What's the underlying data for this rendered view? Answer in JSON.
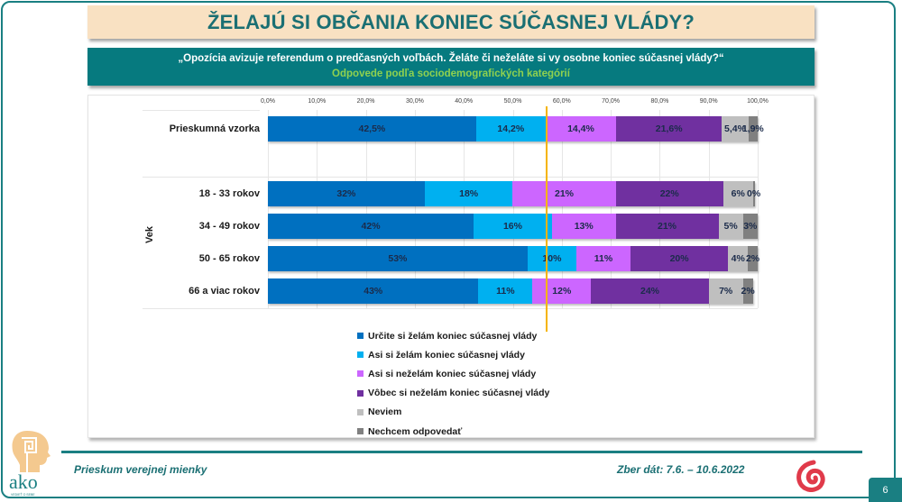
{
  "header": {
    "title": "ŽELAJÚ SI OBČANIA KONIEC SÚČASNEJ VLÁDY?",
    "question": "„Opozícia avizuje referendum o predčasných voľbách. Želáte či neželáte si vy osobne koniec súčasnej vlády?“",
    "subtitle": "Odpovede podľa sociodemografických kategórií"
  },
  "footer": {
    "left_text": "Prieskum verejnej mienky",
    "right_text": "Zber dát: 7.6. – 10.6.2022",
    "page_number": "6",
    "logo_text": "ako",
    "logo_tagline": "VEDIEŤ O SEBE",
    "icons": [
      "ako-logo-icon",
      "spiral-logo-icon"
    ]
  },
  "axis": {
    "ticks": [
      "0,0%",
      "10,0%",
      "20,0%",
      "30,0%",
      "40,0%",
      "50,0%",
      "60,0%",
      "70,0%",
      "80,0%",
      "90,0%",
      "100,0%"
    ],
    "group_label": "Vek"
  },
  "legend": [
    {
      "label": "Určite si želám koniec súčasnej vlády",
      "color": "#0070c0"
    },
    {
      "label": "Asi si želám koniec súčasnej vlády",
      "color": "#00b0f0"
    },
    {
      "label": "Asi si neželám koniec súčasnej vlády",
      "color": "#cc66ff"
    },
    {
      "label": "Vôbec si neželám koniec súčasnej vlády",
      "color": "#7030a0"
    },
    {
      "label": "Neviem",
      "color": "#bfbfbf"
    },
    {
      "label": "Nechcem odpovedať",
      "color": "#808080"
    }
  ],
  "rows": [
    {
      "label": "Prieskumná vzorka",
      "values": [
        42.5,
        14.2,
        14.4,
        21.6,
        5.4,
        1.9
      ],
      "labels": [
        "42,5%",
        "14,2%",
        "14,4%",
        "21,6%",
        "5,4%",
        "1,9%"
      ]
    },
    {
      "label": "18 - 33 rokov",
      "values": [
        32,
        18,
        21,
        22,
        6,
        0.4
      ],
      "labels": [
        "32%",
        "18%",
        "21%",
        "22%",
        "6%",
        "0%"
      ]
    },
    {
      "label": "34 - 49 rokov",
      "values": [
        42,
        16,
        13,
        21,
        5,
        3
      ],
      "labels": [
        "42%",
        "16%",
        "13%",
        "21%",
        "5%",
        "3%"
      ]
    },
    {
      "label": "50 - 65 rokov",
      "values": [
        53,
        10,
        11,
        20,
        4,
        2
      ],
      "labels": [
        "53%",
        "10%",
        "11%",
        "20%",
        "4%",
        "2%"
      ]
    },
    {
      "label": "66 a viac rokov",
      "values": [
        43,
        11,
        12,
        24,
        7,
        2
      ],
      "labels": [
        "43%",
        "11%",
        "12%",
        "24%",
        "7%",
        "2%"
      ]
    }
  ],
  "chart_data": {
    "type": "bar",
    "orientation": "horizontal-stacked-100",
    "title": "ŽELAJÚ SI OBČANIA KONIEC SÚČASNEJ VLÁDY?",
    "subtitle": "Odpovede podľa sociodemografických kategórií",
    "categories": [
      "Prieskumná vzorka",
      "18 - 33 rokov",
      "34 - 49 rokov",
      "50 - 65 rokov",
      "66 a viac rokov"
    ],
    "group_label": "Vek",
    "series": [
      {
        "name": "Určite si želám koniec súčasnej vlády",
        "color": "#0070c0",
        "values": [
          42.5,
          32,
          42,
          53,
          43
        ]
      },
      {
        "name": "Asi si želám koniec súčasnej vlády",
        "color": "#00b0f0",
        "values": [
          14.2,
          18,
          16,
          10,
          11
        ]
      },
      {
        "name": "Asi si neželám koniec súčasnej vlády",
        "color": "#cc66ff",
        "values": [
          14.4,
          21,
          13,
          11,
          12
        ]
      },
      {
        "name": "Vôbec si neželám koniec súčasnej vlády",
        "color": "#7030a0",
        "values": [
          21.6,
          22,
          21,
          20,
          24
        ]
      },
      {
        "name": "Neviem",
        "color": "#bfbfbf",
        "values": [
          5.4,
          6,
          5,
          4,
          7
        ]
      },
      {
        "name": "Nechcem odpovedať",
        "color": "#808080",
        "values": [
          1.9,
          0,
          3,
          2,
          2
        ]
      }
    ],
    "xlim": [
      0,
      100
    ],
    "xticks": [
      "0,0%",
      "10,0%",
      "20,0%",
      "30,0%",
      "40,0%",
      "50,0%",
      "60,0%",
      "70,0%",
      "80,0%",
      "90,0%",
      "100,0%"
    ],
    "reference_line": 56.7,
    "grid": true,
    "legend_position": "bottom"
  }
}
